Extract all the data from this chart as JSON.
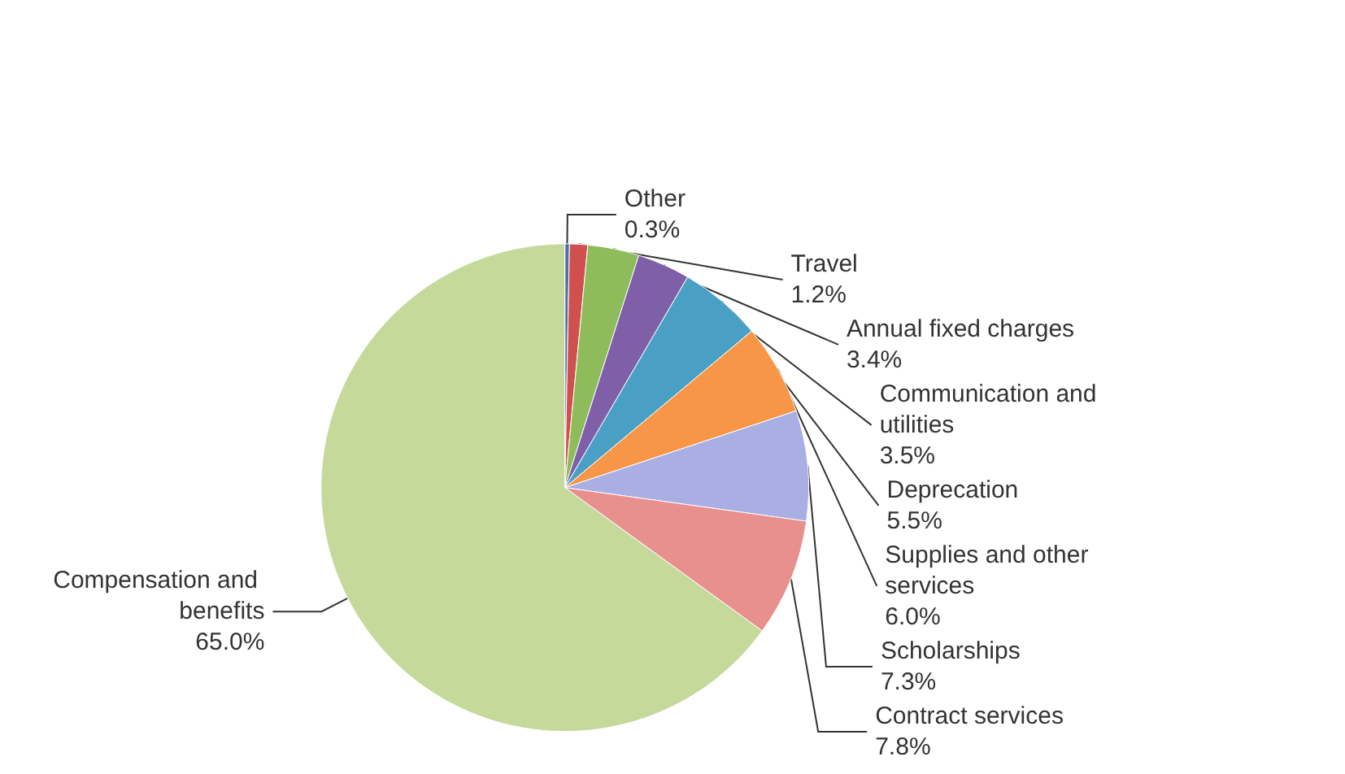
{
  "chart_data": {
    "type": "pie",
    "categories": [
      "Other",
      "Travel",
      "Annual fixed charges",
      "Communication and utilities",
      "Deprecation",
      "Supplies and other services",
      "Scholarships",
      "Contract services",
      "Compensation and benefits"
    ],
    "values": [
      0.3,
      1.2,
      3.4,
      3.5,
      5.5,
      6.0,
      7.3,
      7.8,
      65.0
    ],
    "value_labels": [
      "0.3%",
      "1.2%",
      "3.4%",
      "3.5%",
      "5.5%",
      "6.0%",
      "7.3%",
      "7.8%",
      "65.0%"
    ],
    "colors": [
      "#4f6fa8",
      "#d0504d",
      "#8fbc5a",
      "#7e5fa8",
      "#4a9fc4",
      "#f79646",
      "#a9aee3",
      "#e8908e",
      "#c5d99b"
    ]
  }
}
